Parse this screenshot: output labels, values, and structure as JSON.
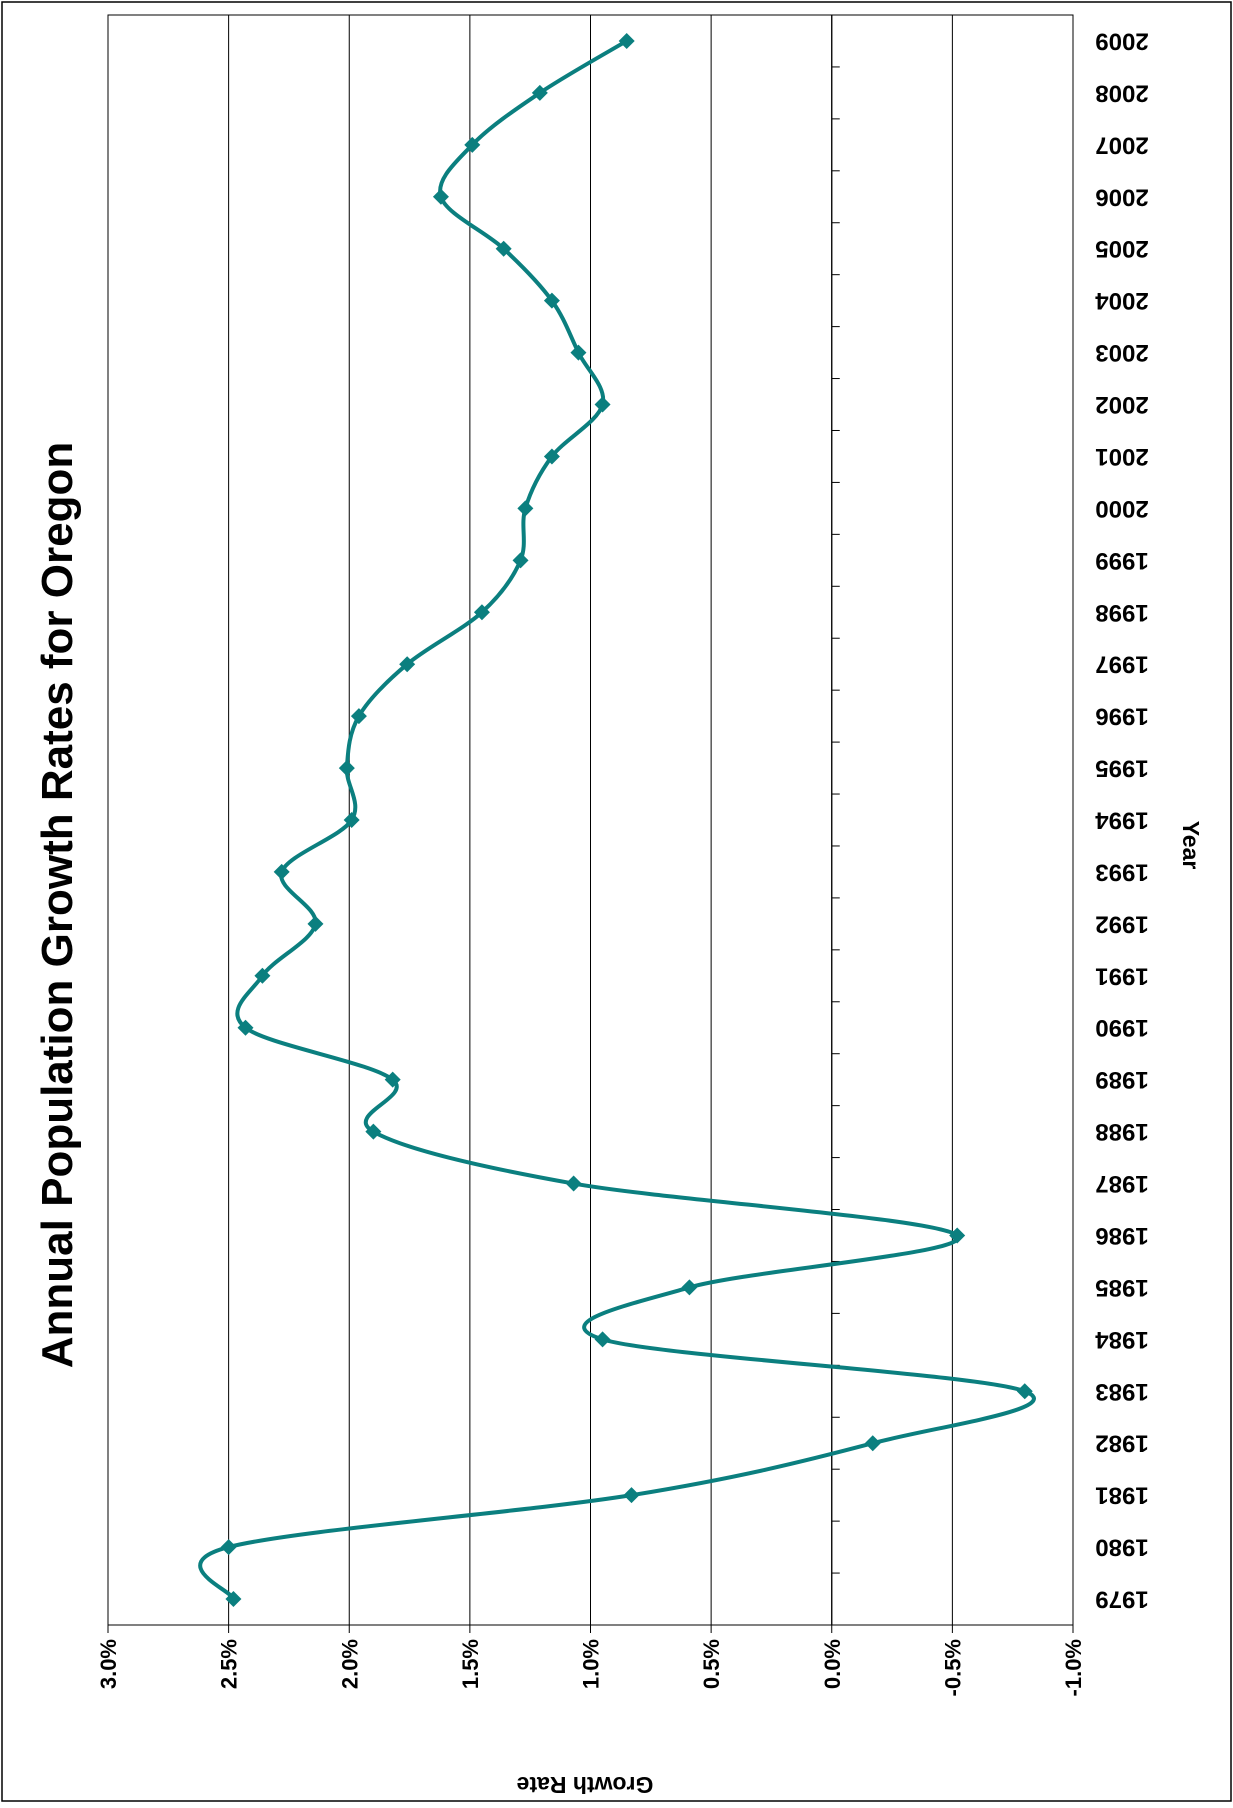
{
  "chart_data": {
    "type": "line",
    "title": "Annual Population Growth Rates for Oregon",
    "xlabel": "Year",
    "ylabel": "Growth Rate",
    "orientation": "rotated-90-clockwise",
    "x": [
      "1979",
      "1980",
      "1981",
      "1982",
      "1983",
      "1984",
      "1985",
      "1986",
      "1987",
      "1988",
      "1989",
      "1990",
      "1991",
      "1992",
      "1993",
      "1994",
      "1995",
      "1996",
      "1997",
      "1998",
      "1999",
      "2000",
      "2001",
      "2002",
      "2003",
      "2004",
      "2005",
      "2006",
      "2007",
      "2008",
      "2009"
    ],
    "series": [
      {
        "name": "",
        "values": [
          2.48,
          2.5,
          0.83,
          -0.17,
          -0.8,
          0.95,
          0.59,
          -0.52,
          1.07,
          1.9,
          1.82,
          2.43,
          2.36,
          2.14,
          2.28,
          1.99,
          2.01,
          1.96,
          1.76,
          1.45,
          1.29,
          1.27,
          1.16,
          0.95,
          1.05,
          1.16,
          1.36,
          1.62,
          1.49,
          1.21,
          0.85
        ],
        "color": "#0b7f7f"
      }
    ],
    "yticks": [
      "3.0%",
      "2.5%",
      "2.0%",
      "1.5%",
      "1.0%",
      "0.5%",
      "0.0%",
      "-0.5%",
      "-1.0%"
    ],
    "ylim": [
      -1.0,
      3.0
    ],
    "grid": true,
    "legend": "none"
  }
}
